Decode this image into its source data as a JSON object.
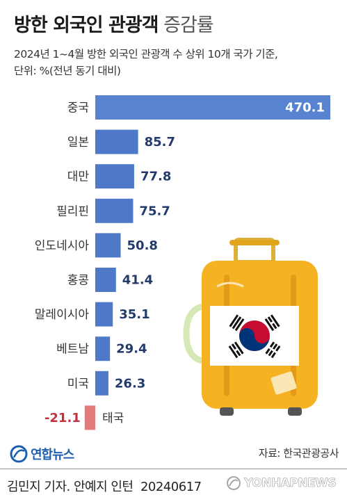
{
  "title_bold": "방한 외국인 관광객",
  "title_light": "증감률",
  "subtitle_line1": "2024년 1~4월 방한 외국인 관광객 수 상위 10개 국가 기준,",
  "subtitle_line2": "단위: %(전년 동기 대비)",
  "source": "자료: 한국관광공사",
  "logo_text": "연합뉴스",
  "credit": "김민지 기자. 안예지 인턴",
  "date": "20240617",
  "watermark_text": "YONHAPNEWS",
  "colors": {
    "positive_bar": "#4e79c9",
    "first_bar": "#5783d1",
    "negative_bar": "#e07b7b",
    "label_blue": "#233b6b",
    "label_red": "#c0323f",
    "suitcase": "#f5b324"
  },
  "chart_data": {
    "type": "bar",
    "orientation": "horizontal",
    "categories": [
      "중국",
      "일본",
      "대만",
      "필리핀",
      "인도네시아",
      "홍콩",
      "말레이시아",
      "베트남",
      "미국",
      "태국"
    ],
    "values": [
      470.1,
      85.7,
      77.8,
      75.7,
      50.8,
      41.4,
      35.1,
      29.4,
      26.3,
      -21.1
    ],
    "value_labels": [
      "470.1",
      "85.7",
      "77.8",
      "75.7",
      "50.8",
      "41.4",
      "35.1",
      "29.4",
      "26.3",
      "-21.1"
    ]
  }
}
